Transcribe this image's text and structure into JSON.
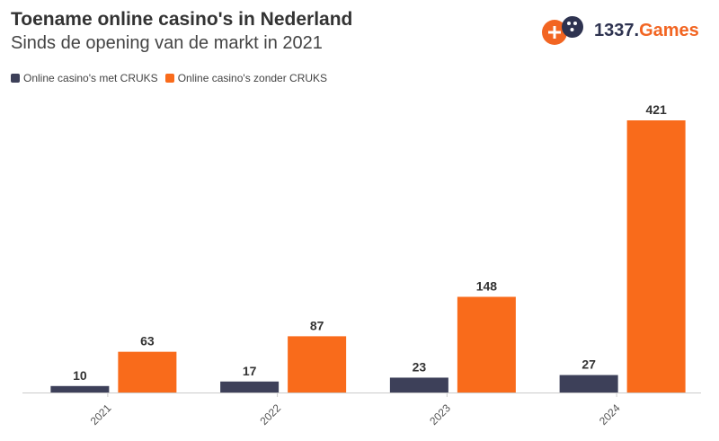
{
  "header": {
    "title": "Toename online casino's in Nederland",
    "subtitle": "Sinds de opening van de markt in 2021"
  },
  "logo": {
    "name_main": "1337.",
    "name_accent": "Games",
    "icon": "gamepad-icon",
    "color_main": "#2e3350",
    "color_accent": "#f26522"
  },
  "chart_data": {
    "type": "bar",
    "title": "Toename online casino's in Nederland",
    "subtitle": "Sinds de opening van de markt in 2021",
    "categories": [
      "2021",
      "2022",
      "2023",
      "2024"
    ],
    "series": [
      {
        "name": "Online casino's met CRUKS",
        "values": [
          10,
          17,
          23,
          27
        ],
        "color": "#3d4059"
      },
      {
        "name": "Online casino's zonder CRUKS",
        "values": [
          63,
          87,
          148,
          421
        ],
        "color": "#f96b1b"
      }
    ],
    "ylim": [
      0,
      421
    ],
    "grid": false,
    "legend_position": "top-left",
    "data_labels": true
  }
}
